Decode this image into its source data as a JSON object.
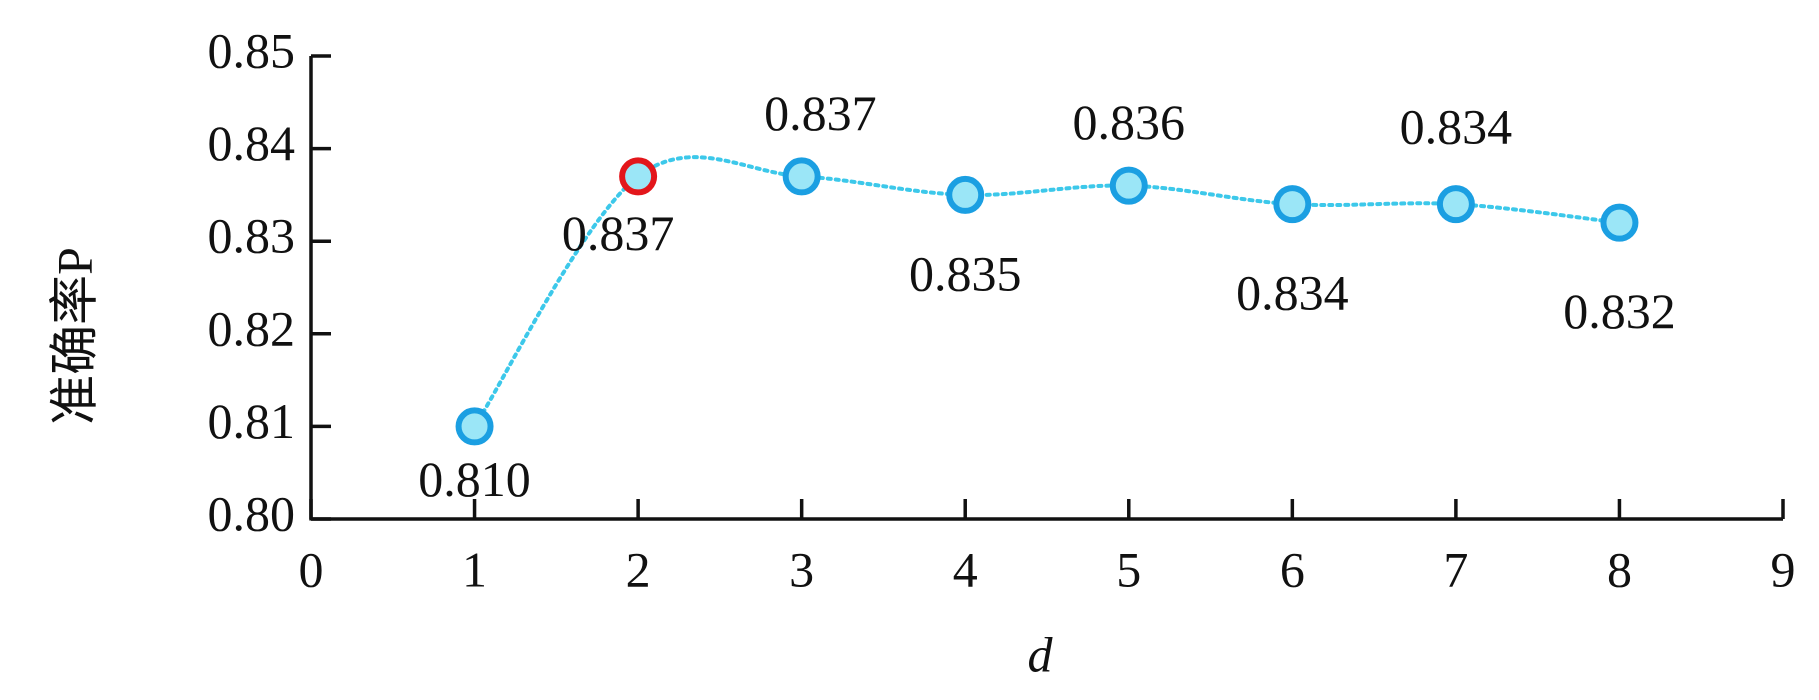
{
  "chart_data": {
    "type": "line",
    "x_label": "d",
    "y_label": "准确率P",
    "x": [
      1,
      2,
      3,
      4,
      5,
      6,
      7,
      8
    ],
    "series": [
      {
        "color": "#3cc8ea",
        "marker_edge": "#1b9fe2",
        "marker_fill": "#9be6f7",
        "values": [
          0.81,
          0.837,
          0.837,
          0.835,
          0.836,
          0.834,
          0.834,
          0.832
        ],
        "value_labels": [
          "0.810",
          "0.837",
          "0.837",
          "0.835",
          "0.836",
          "0.834",
          "0.834",
          "0.832"
        ]
      }
    ],
    "highlight_index": 1,
    "highlight_color": "#e3161b",
    "xlim": [
      0,
      9
    ],
    "xticks": [
      0,
      1,
      2,
      3,
      4,
      5,
      6,
      7,
      8,
      9
    ],
    "ylim": [
      0.8,
      0.85
    ],
    "yticks": [
      {
        "value": 0.8,
        "label": "0.80"
      },
      0.81,
      0.82,
      0.83,
      0.84,
      0.85
    ],
    "grid": false
  }
}
